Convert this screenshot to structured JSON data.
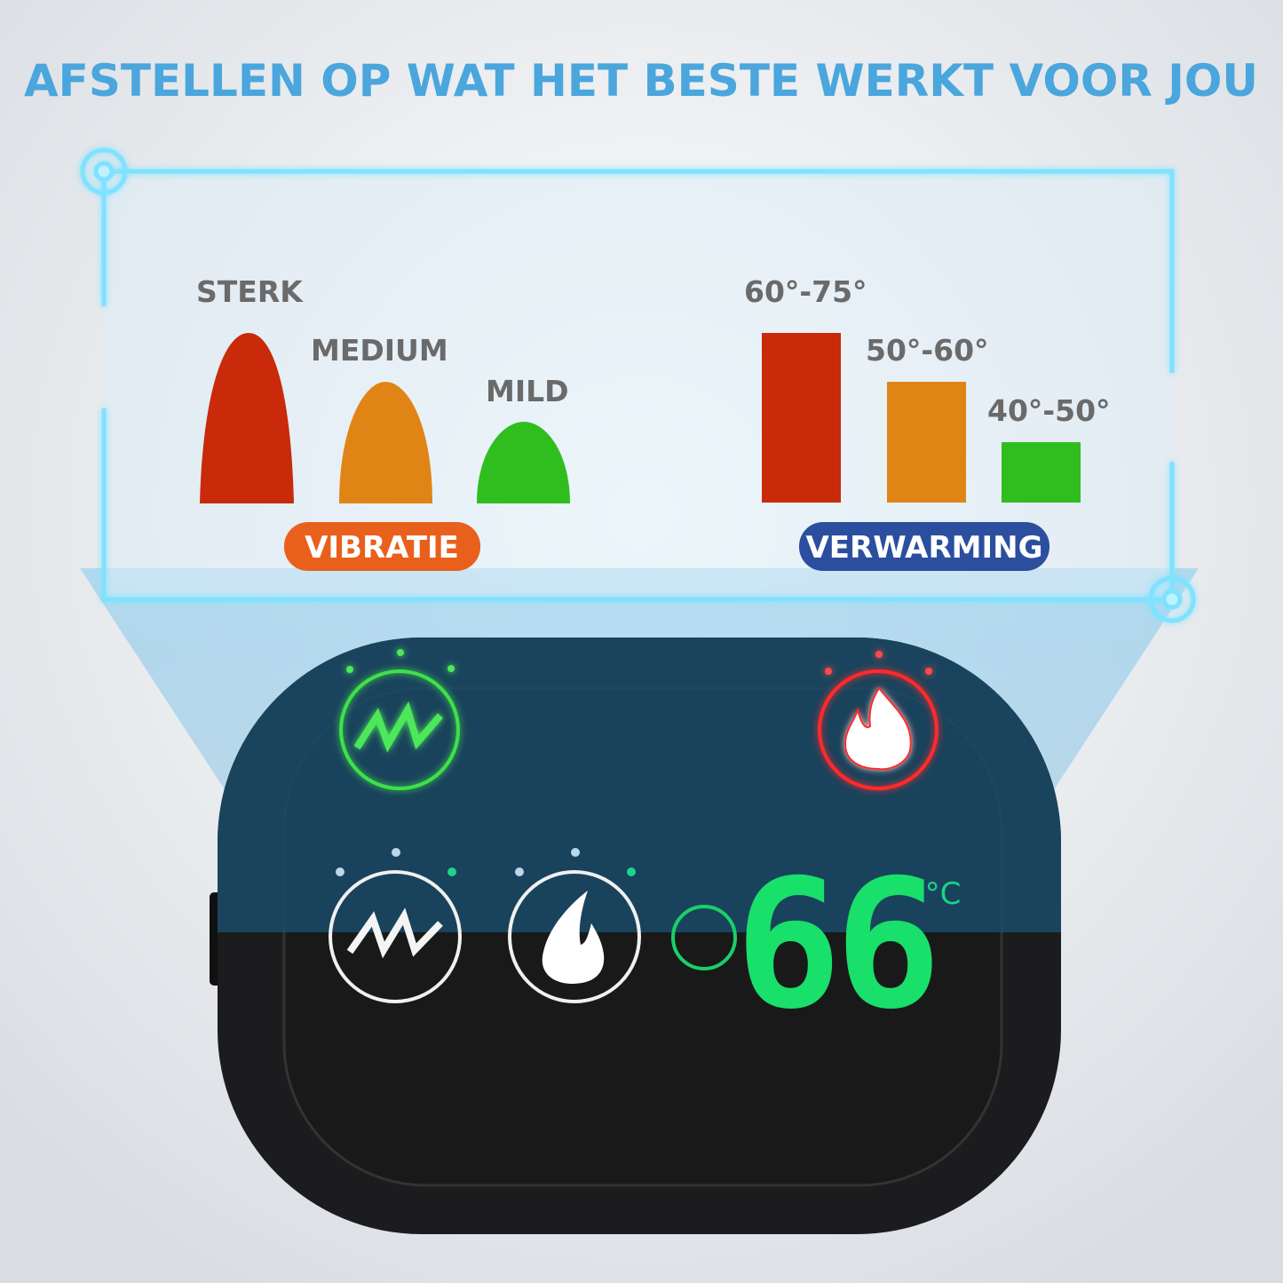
{
  "title": "AFSTELLEN OP WAT HET BESTE WERKT VOOR JOU",
  "colors": {
    "title": "#4aa6dc",
    "high": "#c92a0a",
    "medium": "#e08515",
    "low": "#2fbe1e",
    "vibration_pill": "#e8601c",
    "heating_pill": "#2b4f9e",
    "display_green": "#18e06a"
  },
  "vibration": {
    "label": "VIBRATIE",
    "levels": [
      {
        "name": "STERK",
        "level": 3
      },
      {
        "name": "MEDIUM",
        "level": 2
      },
      {
        "name": "MILD",
        "level": 1
      }
    ]
  },
  "heating": {
    "label": "VERWARMING",
    "levels": [
      {
        "name": "60°-75°",
        "level": 3
      },
      {
        "name": "50°-60°",
        "level": 2
      },
      {
        "name": "40°-50°",
        "level": 1
      }
    ]
  },
  "device": {
    "temperature": "66",
    "unit": "°C",
    "icons": [
      "vibration-icon",
      "flame-icon"
    ]
  }
}
